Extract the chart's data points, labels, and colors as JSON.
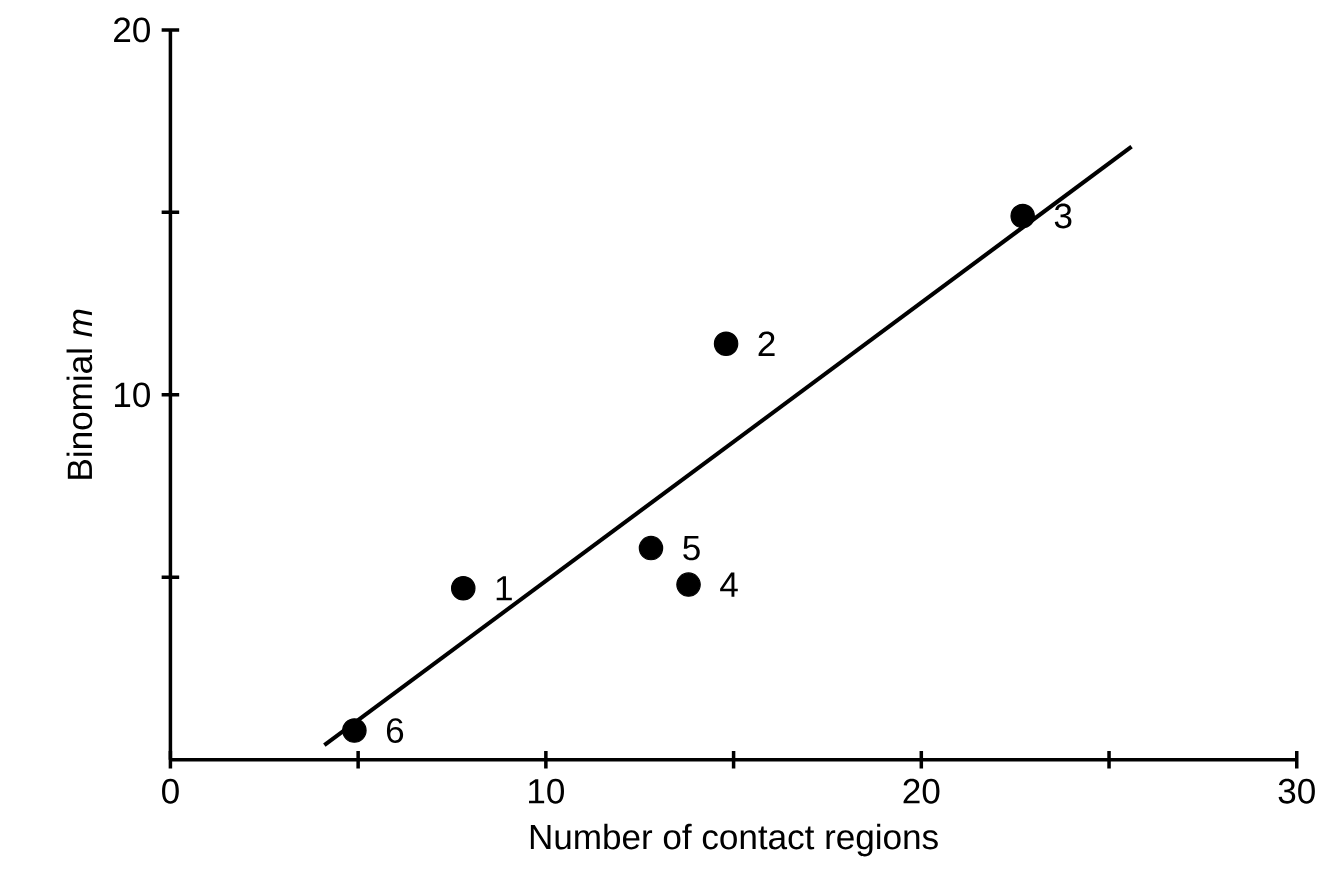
{
  "chart_data": {
    "type": "scatter",
    "xlabel": "Number of contact regions",
    "ylabel": "Binomial *m*",
    "xlim": [
      0,
      30
    ],
    "ylim": [
      0,
      20
    ],
    "xticks": [
      0,
      {
        "value": 5,
        "label": null
      },
      10,
      {
        "value": 15,
        "label": null
      },
      20,
      {
        "value": 25,
        "label": null
      },
      30
    ],
    "yticks": [
      {
        "value": 5,
        "label": null
      },
      10,
      {
        "value": 15,
        "label": null
      },
      20
    ],
    "grid": false,
    "series": [
      {
        "color": "#000000",
        "marker": "circle",
        "x": [
          7.8,
          14.8,
          22.7,
          13.8,
          12.8,
          4.9
        ],
        "values": [
          4.7,
          11.4,
          14.9,
          4.8,
          5.8,
          0.8
        ]
      },
      {
        "type": "line",
        "color": "#000000",
        "marker": "none",
        "line_style": "solid",
        "x": [
          4.1,
          25.6
        ],
        "values": [
          0.4,
          16.8
        ]
      }
    ],
    "annotations": [
      {
        "text": "1",
        "x": 7.8,
        "y": 4.7
      },
      {
        "text": "2",
        "x": 14.8,
        "y": 11.4
      },
      {
        "text": "3",
        "x": 22.7,
        "y": 14.9
      },
      {
        "text": "4",
        "x": 13.8,
        "y": 4.8
      },
      {
        "text": "5",
        "x": 12.8,
        "y": 5.8
      },
      {
        "text": "6",
        "x": 4.9,
        "y": 0.8
      }
    ]
  }
}
